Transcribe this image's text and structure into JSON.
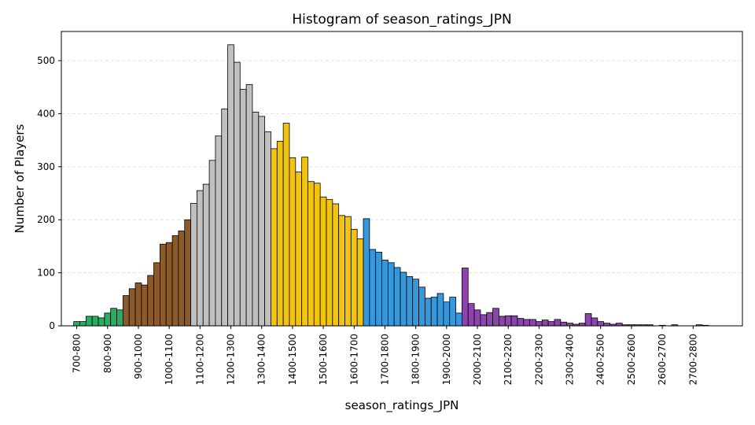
{
  "chart_data": {
    "type": "bar",
    "title": "Histogram of season_ratings_JPN",
    "xlabel": "season_ratings_JPN",
    "ylabel": "Number of Players",
    "xlim": [
      650,
      2860
    ],
    "ylim": [
      0,
      555
    ],
    "yticks": [
      0,
      100,
      200,
      300,
      400,
      500
    ],
    "xticks": [
      {
        "label": "700-800",
        "value": 700
      },
      {
        "label": "800-900",
        "value": 800
      },
      {
        "label": "900-1000",
        "value": 900
      },
      {
        "label": "1000-1100",
        "value": 1000
      },
      {
        "label": "1100-1200",
        "value": 1100
      },
      {
        "label": "1200-1300",
        "value": 1200
      },
      {
        "label": "1300-1400",
        "value": 1300
      },
      {
        "label": "1400-1500",
        "value": 1400
      },
      {
        "label": "1500-1600",
        "value": 1500
      },
      {
        "label": "1600-1700",
        "value": 1600
      },
      {
        "label": "1700-1800",
        "value": 1700
      },
      {
        "label": "1800-1900",
        "value": 1800
      },
      {
        "label": "1900-2000",
        "value": 1900
      },
      {
        "label": "2000-2100",
        "value": 2000
      },
      {
        "label": "2100-2200",
        "value": 2100
      },
      {
        "label": "2200-2300",
        "value": 2200
      },
      {
        "label": "2300-2400",
        "value": 2300
      },
      {
        "label": "2400-2500",
        "value": 2400
      },
      {
        "label": "2500-2600",
        "value": 2500
      },
      {
        "label": "2600-2700",
        "value": 2600
      },
      {
        "label": "2700-2800",
        "value": 2700
      }
    ],
    "grid": "y-dashed",
    "colors": {
      "green": "#27ae60",
      "brown": "#8b5a2b",
      "gray": "#c0c0c0",
      "gold": "#f1c40f",
      "blue": "#3498db",
      "purple": "#8e44ad"
    },
    "bin_start": 690,
    "bin_width": 20,
    "bins": [
      {
        "value": 8,
        "color": "green"
      },
      {
        "value": 8,
        "color": "green"
      },
      {
        "value": 18,
        "color": "green"
      },
      {
        "value": 18,
        "color": "green"
      },
      {
        "value": 15,
        "color": "green"
      },
      {
        "value": 24,
        "color": "green"
      },
      {
        "value": 33,
        "color": "green"
      },
      {
        "value": 30,
        "color": "green"
      },
      {
        "value": 57,
        "color": "brown"
      },
      {
        "value": 70,
        "color": "brown"
      },
      {
        "value": 81,
        "color": "brown"
      },
      {
        "value": 77,
        "color": "brown"
      },
      {
        "value": 95,
        "color": "brown"
      },
      {
        "value": 119,
        "color": "brown"
      },
      {
        "value": 154,
        "color": "brown"
      },
      {
        "value": 157,
        "color": "brown"
      },
      {
        "value": 170,
        "color": "brown"
      },
      {
        "value": 179,
        "color": "brown"
      },
      {
        "value": 200,
        "color": "brown"
      },
      {
        "value": 231,
        "color": "gray"
      },
      {
        "value": 255,
        "color": "gray"
      },
      {
        "value": 267,
        "color": "gray"
      },
      {
        "value": 312,
        "color": "gray"
      },
      {
        "value": 358,
        "color": "gray"
      },
      {
        "value": 409,
        "color": "gray"
      },
      {
        "value": 530,
        "color": "gray"
      },
      {
        "value": 497,
        "color": "gray"
      },
      {
        "value": 446,
        "color": "gray"
      },
      {
        "value": 455,
        "color": "gray"
      },
      {
        "value": 403,
        "color": "gray"
      },
      {
        "value": 395,
        "color": "gray"
      },
      {
        "value": 366,
        "color": "gray"
      },
      {
        "value": 334,
        "color": "gold"
      },
      {
        "value": 348,
        "color": "gold"
      },
      {
        "value": 382,
        "color": "gold"
      },
      {
        "value": 317,
        "color": "gold"
      },
      {
        "value": 290,
        "color": "gold"
      },
      {
        "value": 318,
        "color": "gold"
      },
      {
        "value": 272,
        "color": "gold"
      },
      {
        "value": 269,
        "color": "gold"
      },
      {
        "value": 243,
        "color": "gold"
      },
      {
        "value": 238,
        "color": "gold"
      },
      {
        "value": 230,
        "color": "gold"
      },
      {
        "value": 208,
        "color": "gold"
      },
      {
        "value": 206,
        "color": "gold"
      },
      {
        "value": 182,
        "color": "gold"
      },
      {
        "value": 164,
        "color": "gold"
      },
      {
        "value": 202,
        "color": "blue"
      },
      {
        "value": 144,
        "color": "blue"
      },
      {
        "value": 139,
        "color": "blue"
      },
      {
        "value": 124,
        "color": "blue"
      },
      {
        "value": 119,
        "color": "blue"
      },
      {
        "value": 110,
        "color": "blue"
      },
      {
        "value": 101,
        "color": "blue"
      },
      {
        "value": 93,
        "color": "blue"
      },
      {
        "value": 88,
        "color": "blue"
      },
      {
        "value": 73,
        "color": "blue"
      },
      {
        "value": 52,
        "color": "blue"
      },
      {
        "value": 54,
        "color": "blue"
      },
      {
        "value": 61,
        "color": "blue"
      },
      {
        "value": 45,
        "color": "blue"
      },
      {
        "value": 54,
        "color": "blue"
      },
      {
        "value": 24,
        "color": "blue"
      },
      {
        "value": 109,
        "color": "purple"
      },
      {
        "value": 42,
        "color": "purple"
      },
      {
        "value": 30,
        "color": "purple"
      },
      {
        "value": 21,
        "color": "purple"
      },
      {
        "value": 25,
        "color": "purple"
      },
      {
        "value": 33,
        "color": "purple"
      },
      {
        "value": 18,
        "color": "purple"
      },
      {
        "value": 19,
        "color": "purple"
      },
      {
        "value": 19,
        "color": "purple"
      },
      {
        "value": 14,
        "color": "purple"
      },
      {
        "value": 12,
        "color": "purple"
      },
      {
        "value": 12,
        "color": "purple"
      },
      {
        "value": 8,
        "color": "purple"
      },
      {
        "value": 11,
        "color": "purple"
      },
      {
        "value": 8,
        "color": "purple"
      },
      {
        "value": 12,
        "color": "purple"
      },
      {
        "value": 7,
        "color": "purple"
      },
      {
        "value": 5,
        "color": "purple"
      },
      {
        "value": 3,
        "color": "purple"
      },
      {
        "value": 5,
        "color": "purple"
      },
      {
        "value": 23,
        "color": "purple"
      },
      {
        "value": 15,
        "color": "purple"
      },
      {
        "value": 8,
        "color": "purple"
      },
      {
        "value": 5,
        "color": "purple"
      },
      {
        "value": 3,
        "color": "purple"
      },
      {
        "value": 5,
        "color": "purple"
      },
      {
        "value": 2,
        "color": "purple"
      },
      {
        "value": 2,
        "color": "purple"
      },
      {
        "value": 2,
        "color": "purple"
      },
      {
        "value": 2,
        "color": "purple"
      },
      {
        "value": 2,
        "color": "purple"
      },
      {
        "value": 0,
        "color": "purple"
      },
      {
        "value": 1,
        "color": "purple"
      },
      {
        "value": 0,
        "color": "purple"
      },
      {
        "value": 2,
        "color": "purple"
      },
      {
        "value": 0,
        "color": "purple"
      },
      {
        "value": 0,
        "color": "purple"
      },
      {
        "value": 0,
        "color": "purple"
      },
      {
        "value": 2,
        "color": "purple"
      },
      {
        "value": 1,
        "color": "purple"
      }
    ]
  }
}
